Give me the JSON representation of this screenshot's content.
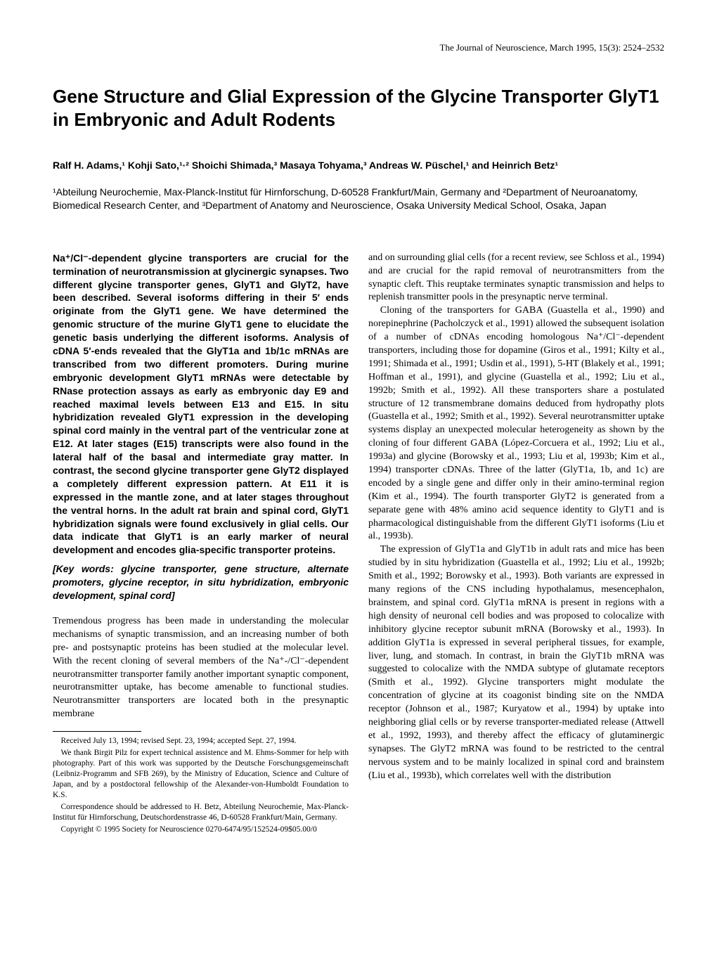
{
  "header": "The Journal of Neuroscience, March 1995, 15(3): 2524–2532",
  "title": "Gene Structure and Glial Expression of the Glycine Transporter GlyT1 in Embryonic and Adult Rodents",
  "authors": "Ralf H. Adams,¹ Kohji Sato,¹·² Shoichi Shimada,³ Masaya Tohyama,³ Andreas W. Püschel,¹ and Heinrich Betz¹",
  "affiliations": "¹Abteilung Neurochemie, Max-Planck-Institut für Hirnforschung, D-60528 Frankfurt/Main, Germany and ²Department of Neuroanatomy, Biomedical Research Center, and ³Department of Anatomy and Neuroscience, Osaka University Medical School, Osaka, Japan",
  "abstract": "Na⁺/Cl⁻-dependent glycine transporters are crucial for the termination of neurotransmission at glycinergic synapses. Two different glycine transporter genes, GlyT1 and GlyT2, have been described. Several isoforms differing in their 5′ ends originate from the GlyT1 gene. We have determined the genomic structure of the murine GlyT1 gene to elucidate the genetic basis underlying the different isoforms. Analysis of cDNA 5′-ends revealed that the GlyT1a and 1b/1c mRNAs are transcribed from two different promoters. During murine embryonic development GlyT1 mRNAs were detectable by RNase protection assays as early as embryonic day E9 and reached maximal levels between E13 and E15. In situ hybridization revealed GlyT1 expression in the developing spinal cord mainly in the ventral part of the ventricular zone at E12. At later stages (E15) transcripts were also found in the lateral half of the basal and intermediate gray matter. In contrast, the second glycine transporter gene GlyT2 displayed a completely different expression pattern. At E11 it is expressed in the mantle zone, and at later stages throughout the ventral horns. In the adult rat brain and spinal cord, GlyT1 hybridization signals were found exclusively in glial cells. Our data indicate that GlyT1 is an early marker of neural development and encodes glia-specific transporter proteins.",
  "keywords": "[Key words: glycine transporter, gene structure, alternate promoters, glycine receptor, in situ hybridization, embryonic development, spinal cord]",
  "body1": "Tremendous progress has been made in understanding the molecular mechanisms of synaptic transmission, and an increasing number of both pre- and postsynaptic proteins has been studied at the molecular level. With the recent cloning of several members of the Na⁺-/Cl⁻-dependent neurotransmitter transporter family another important synaptic component, neurotransmitter uptake, has become amenable to functional studies. Neurotransmitter transporters are located both in the presynaptic membrane",
  "body2": "and on surrounding glial cells (for a recent review, see Schloss et al., 1994) and are crucial for the rapid removal of neurotransmitters from the synaptic cleft. This reuptake terminates synaptic transmission and helps to replenish transmitter pools in the presynaptic nerve terminal.",
  "body3": "Cloning of the transporters for GABA (Guastella et al., 1990) and norepinephrine (Pacholczyck et al., 1991) allowed the subsequent isolation of a number of cDNAs encoding homologous Na⁺/Cl⁻-dependent transporters, including those for dopamine (Giros et al., 1991; Kilty et al., 1991; Shimada et al., 1991; Usdin et al., 1991), 5-HT (Blakely et al., 1991; Hoffman et al., 1991), and glycine (Guastella et al., 1992; Liu et al., 1992b; Smith et al., 1992). All these transporters share a postulated structure of 12 transmembrane domains deduced from hydropathy plots (Guastella et al., 1992; Smith et al., 1992). Several neurotransmitter uptake systems display an unexpected molecular heterogeneity as shown by the cloning of four different GABA (López-Corcuera et al., 1992; Liu et al., 1993a) and glycine (Borowsky et al., 1993; Liu et al, 1993b; Kim et al., 1994) transporter cDNAs. Three of the latter (GlyT1a, 1b, and 1c) are encoded by a single gene and differ only in their amino-terminal region (Kim et al., 1994). The fourth transporter GlyT2 is generated from a separate gene with 48% amino acid sequence identity to GlyT1 and is pharmacological distinguishable from the different GlyT1 isoforms (Liu et al., 1993b).",
  "body4": "The expression of GlyT1a and GlyT1b in adult rats and mice has been studied by in situ hybridization (Guastella et al., 1992; Liu et al., 1992b; Smith et al., 1992; Borowsky et al., 1993). Both variants are expressed in many regions of the CNS including hypothalamus, mesencephalon, brainstem, and spinal cord. GlyT1a mRNA is present in regions with a high density of neuronal cell bodies and was proposed to colocalize with inhibitory glycine receptor subunit mRNA (Borowsky et al., 1993). In addition GlyT1a is expressed in several peripheral tissues, for example, liver, lung, and stomach. In contrast, in brain the GlyT1b mRNA was suggested to colocalize with the NMDA subtype of glutamate receptors (Smith et al., 1992). Glycine transporters might modulate the concentration of glycine at its coagonist binding site on the NMDA receptor (Johnson et al., 1987; Kuryatow et al., 1994) by uptake into neighboring glial cells or by reverse transporter-mediated release (Attwell et al., 1992, 1993), and thereby affect the efficacy of glutaminergic synapses. The GlyT2 mRNA was found to be restricted to the central nervous system and to be mainly localized in spinal cord and brainstem (Liu et al., 1993b), which correlates well with the distribution",
  "footnotes": {
    "received": "Received July 13, 1994; revised Sept. 23, 1994; accepted Sept. 27, 1994.",
    "thanks": "We thank Birgit Pilz for expert technical assistence and M. Ehms-Sommer for help with photography. Part of this work was supported by the Deutsche Forschungsgemeinschaft (Leibniz-Programm and SFB 269), by the Ministry of Education, Science and Culture of Japan, and by a postdoctoral fellowship of the Alexander-von-Humboldt Foundation to K.S.",
    "correspondence": "Correspondence should be addressed to H. Betz, Abteilung Neurochemie, Max-Planck-Institut für Hirnforschung, Deutschordenstrasse 46, D-60528 Frankfurt/Main, Germany.",
    "copyright": "Copyright © 1995 Society for Neuroscience 0270-6474/95/152524-09$05.00/0"
  }
}
